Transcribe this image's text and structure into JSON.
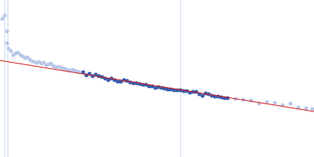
{
  "chart_data": {
    "type": "scatter",
    "xlim": [
      0,
      400
    ],
    "ylim": [
      0,
      200
    ],
    "tick_labels": false,
    "grid": false,
    "vlines": {
      "x": [
        6,
        10,
        230
      ],
      "color": "#c8d6ec"
    },
    "series": [
      {
        "color": "#b8c8e8",
        "marker": "circle",
        "x": [
          3,
          6,
          9,
          9,
          11,
          14,
          17,
          20,
          23,
          26,
          29,
          32,
          35,
          38,
          41,
          44,
          47,
          50,
          53,
          56,
          59,
          62,
          65,
          68,
          71,
          74,
          77,
          80,
          83,
          86,
          89,
          92,
          95,
          98,
          101
        ],
        "values": [
          176,
          180,
          160,
          145,
          138,
          135,
          130,
          132,
          133,
          130,
          128,
          126,
          127,
          124,
          122,
          121,
          120,
          121,
          119,
          120,
          117,
          118,
          119,
          116,
          114,
          115,
          114,
          113,
          112,
          111,
          110,
          111,
          110,
          109,
          108
        ]
      },
      {
        "color": "#3a5cad",
        "marker": "circle",
        "x": [
          106,
          110,
          114,
          118,
          122,
          126,
          130,
          134,
          138,
          142,
          146,
          150,
          154,
          158,
          162,
          166,
          170,
          174,
          178,
          182,
          186,
          190,
          194,
          198,
          202,
          206,
          210,
          214,
          218,
          222,
          226,
          230,
          234,
          238,
          242,
          246,
          250,
          254,
          258,
          262,
          266,
          270,
          274,
          278,
          282,
          286,
          290
        ],
        "values": [
          108,
          104,
          106,
          103,
          105,
          103,
          102,
          100,
          98,
          100,
          98,
          96,
          96,
          98,
          97,
          95,
          94,
          94,
          93,
          92,
          92,
          90,
          90,
          88,
          89,
          88,
          87,
          86,
          86,
          85,
          85,
          85,
          84,
          84,
          82,
          83,
          83,
          80,
          78,
          81,
          80,
          78,
          77,
          77,
          76,
          75,
          75
        ]
      },
      {
        "color": "#b8c8e8",
        "marker": "circle",
        "x": [
          300,
          310,
          320,
          330,
          340,
          350,
          360,
          370,
          380,
          390,
          398
        ],
        "values": [
          74,
          73,
          72,
          68,
          70,
          69,
          66,
          68,
          63,
          62,
          61
        ]
      },
      {
        "type": "line",
        "color": "#d62020",
        "x": [
          0,
          400
        ],
        "values": [
          123,
          58
        ]
      }
    ]
  }
}
